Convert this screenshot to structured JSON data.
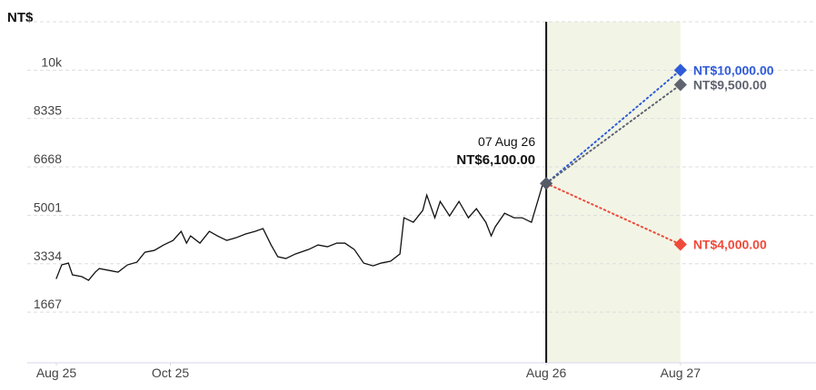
{
  "chart_data": {
    "type": "line",
    "y_axis_label": "NT$",
    "ylim": [
      0,
      11667
    ],
    "yticks": [
      1667,
      3334,
      5001,
      6668,
      8335,
      {
        "value": 10000,
        "label": "10k"
      }
    ],
    "xlim": [
      0,
      566
    ],
    "xticks": [
      {
        "value": 0,
        "label": "Aug 25"
      },
      {
        "value": 85,
        "label": "Oct 25"
      },
      {
        "value": 365,
        "label": "Aug 26"
      },
      {
        "value": 465,
        "label": "Aug 27"
      }
    ],
    "grid": true,
    "forecast_region": [
      365,
      465
    ],
    "annotation": {
      "date": "07 Aug 26",
      "label": "NT$6,100.00"
    },
    "series": [
      {
        "color": "#111111",
        "x": [
          0,
          4,
          9,
          12,
          19,
          24,
          29,
          32,
          39,
          46,
          53,
          60,
          66,
          73,
          80,
          87,
          93,
          97,
          100,
          107,
          114,
          120,
          127,
          134,
          141,
          148,
          154,
          160,
          165,
          171,
          178,
          188,
          195,
          202,
          209,
          215,
          222,
          229,
          236,
          242,
          249,
          256,
          259,
          266,
          273,
          276,
          282,
          286,
          293,
          300,
          307,
          313,
          320,
          324,
          327,
          334,
          341,
          347,
          354,
          357,
          362,
          365
        ],
        "values": [
          2825,
          3294,
          3356,
          2950,
          2888,
          2763,
          3044,
          3169,
          3106,
          3044,
          3294,
          3387,
          3731,
          3793,
          3981,
          4137,
          4449,
          4043,
          4293,
          4043,
          4449,
          4293,
          4137,
          4231,
          4356,
          4449,
          4543,
          3981,
          3575,
          3512,
          3668,
          3825,
          3981,
          3918,
          4043,
          4043,
          3825,
          3356,
          3262,
          3356,
          3419,
          3668,
          4917,
          4761,
          5167,
          5698,
          4917,
          5479,
          4980,
          5479,
          4917,
          5229,
          4761,
          4293,
          4605,
          5073,
          4917,
          4917,
          4761,
          5229,
          6010,
          6100
        ]
      },
      {
        "color": "#2f5bd8",
        "x": [
          365,
          465
        ],
        "values": [
          6100,
          10000
        ],
        "value_labels": [
          null,
          "NT$10,000.00"
        ]
      },
      {
        "color": "#5f6470",
        "x": [
          365,
          465
        ],
        "values": [
          6100,
          9500
        ],
        "value_labels": [
          null,
          "NT$9,500.00"
        ]
      },
      {
        "color": "#f04a3a",
        "x": [
          365,
          465
        ],
        "values": [
          6100,
          4000
        ],
        "value_labels": [
          null,
          "NT$4,000.00"
        ]
      }
    ]
  }
}
